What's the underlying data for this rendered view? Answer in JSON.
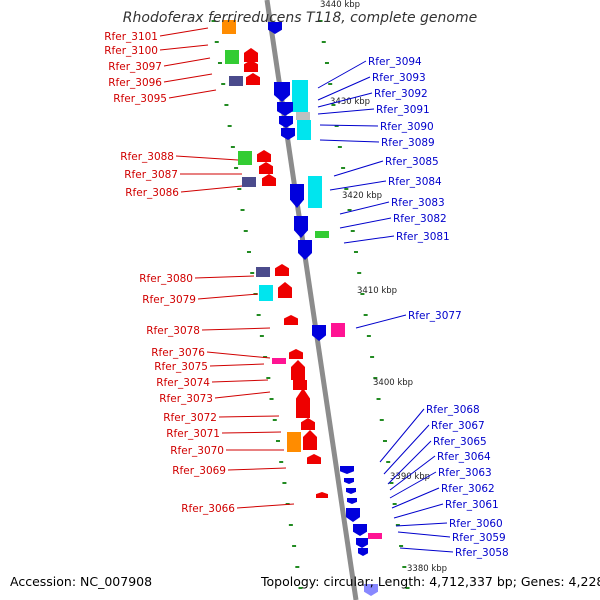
{
  "title": "Rhodoferax ferrireducens T118, complete genome",
  "accession_label": "Accession: NC_007908",
  "summary_label": "Topology: circular; Length: 4,712,337 bp; Genes: 4,228",
  "ticks": [
    "3440 kbp",
    "3430 kbp",
    "3420 kbp",
    "3410 kbp",
    "3400 kbp",
    "3390 kbp",
    "3380 kbp"
  ],
  "left_genes": [
    "Rfer_3101",
    "Rfer_3100",
    "Rfer_3097",
    "Rfer_3096",
    "Rfer_3095",
    "Rfer_3088",
    "Rfer_3087",
    "Rfer_3086",
    "Rfer_3080",
    "Rfer_3079",
    "Rfer_3078",
    "Rfer_3076",
    "Rfer_3075",
    "Rfer_3074",
    "Rfer_3073",
    "Rfer_3072",
    "Rfer_3071",
    "Rfer_3070",
    "Rfer_3069",
    "Rfer_3066"
  ],
  "right_genes": [
    "Rfer_3094",
    "Rfer_3093",
    "Rfer_3092",
    "Rfer_3091",
    "Rfer_3090",
    "Rfer_3089",
    "Rfer_3085",
    "Rfer_3084",
    "Rfer_3083",
    "Rfer_3082",
    "Rfer_3081",
    "Rfer_3077",
    "Rfer_3068",
    "Rfer_3067",
    "Rfer_3065",
    "Rfer_3064",
    "Rfer_3063",
    "Rfer_3062",
    "Rfer_3061",
    "Rfer_3060",
    "Rfer_3059",
    "Rfer_3058"
  ],
  "colors": {
    "backbone": "#8c8c8c",
    "forward_gene": "#ee0000",
    "reverse_gene": "#0000dd",
    "left_label": "#d00000",
    "right_label": "#0000cc",
    "guide_dots": "#228b22"
  }
}
